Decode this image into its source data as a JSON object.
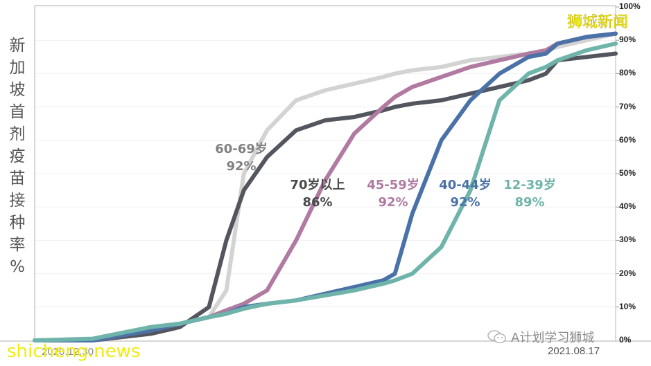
{
  "chart_data": {
    "type": "line",
    "title": "",
    "ylabel": "新加坡首剂疫苗接种率%",
    "xlabel": "",
    "x_start": "2020.12.30",
    "x_end": "2021.08.17",
    "ylim": [
      0,
      100
    ],
    "y_ticks": [
      "10%",
      "20%",
      "30%",
      "40%",
      "50%",
      "60%",
      "70%",
      "80%",
      "90%",
      "100%"
    ],
    "y_axis_position": "right",
    "grid": true,
    "x_points_pct": [
      0,
      10,
      20,
      25,
      30,
      33,
      36,
      40,
      45,
      50,
      55,
      60,
      62,
      65,
      70,
      75,
      80,
      85,
      88,
      90,
      95,
      100
    ],
    "series": [
      {
        "name": "70岁以上",
        "final": "86%",
        "color": "#53565e",
        "values": [
          0,
          0,
          2,
          4,
          10,
          30,
          45,
          55,
          63,
          66,
          67,
          69,
          70,
          71,
          72,
          74,
          76,
          78,
          80,
          84,
          85,
          86
        ]
      },
      {
        "name": "60-69岁",
        "final": "92%",
        "color": "#d3d3d3",
        "values": [
          0,
          0,
          4,
          5,
          7,
          15,
          50,
          63,
          72,
          75,
          77,
          79,
          80,
          81,
          82,
          84,
          85,
          86,
          87,
          88,
          90,
          92
        ]
      },
      {
        "name": "45-59岁",
        "final": "92%",
        "color": "#b07aa1",
        "values": [
          0,
          0,
          3,
          5,
          7,
          9,
          11,
          15,
          30,
          48,
          62,
          70,
          73,
          76,
          79,
          82,
          84,
          86,
          87,
          89,
          91,
          92
        ]
      },
      {
        "name": "40-44岁",
        "final": "92%",
        "color": "#4a72a8",
        "values": [
          0,
          0,
          3,
          5,
          7,
          8,
          10,
          11,
          12,
          14,
          16,
          18,
          20,
          38,
          60,
          72,
          80,
          85,
          86,
          89,
          91,
          92
        ]
      },
      {
        "name": "12-39岁",
        "final": "89%",
        "color": "#6fb4aa",
        "values": [
          0,
          0.5,
          4,
          5,
          7,
          8,
          9.5,
          11,
          12,
          13.5,
          15,
          17,
          18,
          20,
          28,
          45,
          72,
          80,
          82,
          84,
          87,
          89
        ]
      }
    ],
    "annotations": [
      {
        "text": "60-69岁",
        "value": "92%"
      },
      {
        "text": "70岁以上",
        "value": "86%"
      },
      {
        "text": "45-59岁",
        "value": "92%"
      },
      {
        "text": "40-44岁",
        "value": "92%"
      },
      {
        "text": "12-39岁",
        "value": "89%"
      }
    ]
  },
  "ylabel_chars": [
    "新",
    "加",
    "坡",
    "首",
    "剂",
    "疫",
    "苗",
    "接",
    "种",
    "率",
    "%"
  ],
  "labels": {
    "s6069": {
      "name": "60-69岁",
      "value": "92%",
      "color": "#808080"
    },
    "s70": {
      "name": "70岁以上",
      "value": "86%",
      "color": "#4a4a4a"
    },
    "s4559": {
      "name": "45-59岁",
      "value": "92%",
      "color": "#b07aa1"
    },
    "s4044": {
      "name": "40-44岁",
      "value": "92%",
      "color": "#4a72a8"
    },
    "s1239": {
      "name": "12-39岁",
      "value": "89%",
      "color": "#6fb4aa"
    }
  },
  "ticks": [
    "100%",
    "90%",
    "80%",
    "70%",
    "60%",
    "50%",
    "40%",
    "30%",
    "20%",
    "10%",
    "0%"
  ],
  "watermarks": {
    "top_right": "狮城新闻",
    "bottom_left": "shicheng.news",
    "wechat": "A计划学习狮城",
    "wechat_icon": "wechat-icon"
  },
  "dates": {
    "start": "2020.12.30",
    "end": "2021.08.17"
  }
}
